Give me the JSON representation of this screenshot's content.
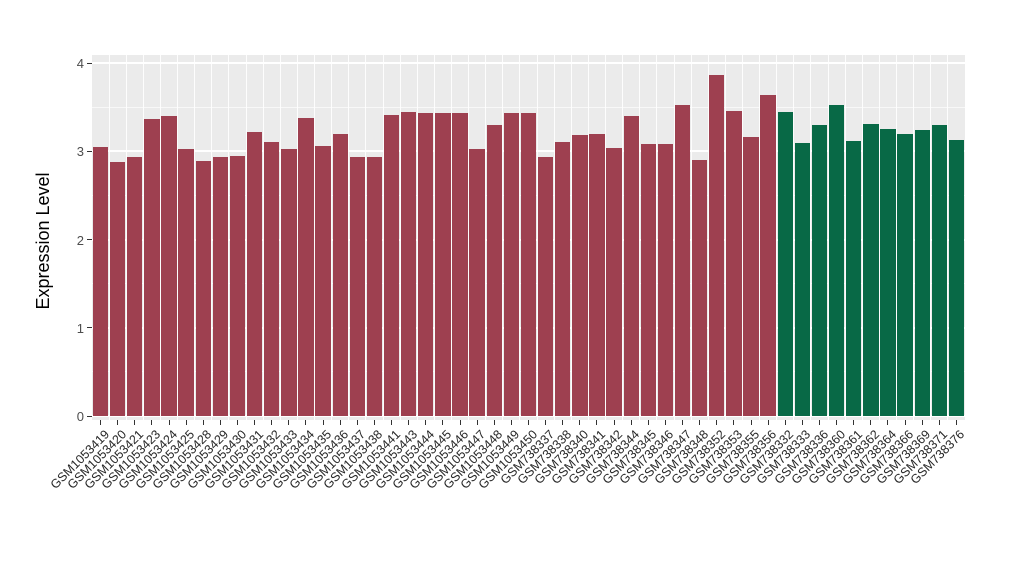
{
  "figure": {
    "y_axis_title": "Expression Level",
    "panel_background": "#EBEBEB",
    "grid_color": "#FFFFFF",
    "axis_text_color": "#262626"
  },
  "chart_data": {
    "type": "bar",
    "title": "",
    "xlabel": "",
    "ylabel": "Expression Level",
    "ylim": [
      0,
      4
    ],
    "yticks": [
      0,
      1,
      2,
      3,
      4
    ],
    "grid": true,
    "legend": false,
    "categories": [
      "GSM1053419",
      "GSM1053420",
      "GSM1053421",
      "GSM1053423",
      "GSM1053424",
      "GSM1053425",
      "GSM1053428",
      "GSM1053429",
      "GSM1053430",
      "GSM1053431",
      "GSM1053432",
      "GSM1053433",
      "GSM1053434",
      "GSM1053435",
      "GSM1053436",
      "GSM1053437",
      "GSM1053438",
      "GSM1053441",
      "GSM1053443",
      "GSM1053444",
      "GSM1053445",
      "GSM1053446",
      "GSM1053447",
      "GSM1053448",
      "GSM1053449",
      "GSM1053450",
      "GSM738337",
      "GSM738338",
      "GSM738340",
      "GSM738341",
      "GSM738342",
      "GSM738344",
      "GSM738345",
      "GSM738346",
      "GSM738347",
      "GSM738348",
      "GSM738352",
      "GSM738353",
      "GSM738355",
      "GSM738356",
      "GSM738332",
      "GSM738333",
      "GSM738336",
      "GSM738360",
      "GSM738361",
      "GSM738362",
      "GSM738364",
      "GSM738366",
      "GSM738369",
      "GSM738371",
      "GSM738376"
    ],
    "values": [
      3.05,
      2.88,
      2.93,
      3.37,
      3.4,
      3.03,
      2.89,
      2.93,
      2.95,
      3.22,
      3.11,
      3.02,
      3.38,
      3.06,
      3.19,
      2.93,
      2.94,
      3.41,
      3.44,
      3.43,
      3.43,
      3.43,
      3.03,
      3.3,
      3.43,
      3.43,
      2.94,
      3.1,
      3.18,
      3.2,
      3.04,
      3.4,
      3.08,
      3.08,
      3.52,
      2.9,
      3.86,
      3.46,
      3.16,
      3.64,
      3.44,
      3.09,
      3.3,
      3.52,
      3.12,
      3.31,
      3.25,
      3.19,
      3.24,
      3.3,
      3.13
    ],
    "group_split_index": 40,
    "group_colors": [
      "#9E4050",
      "#086946"
    ]
  }
}
